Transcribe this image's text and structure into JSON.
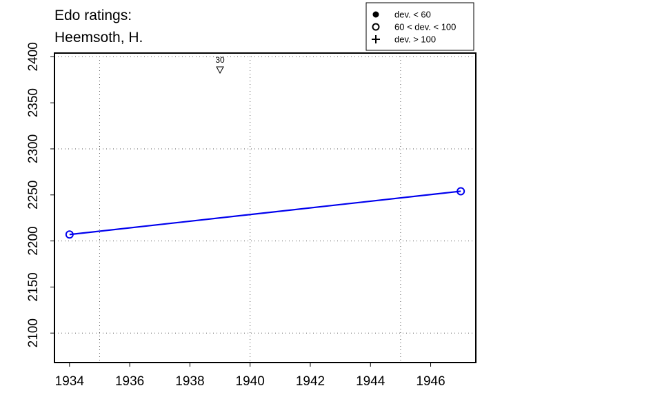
{
  "chart_data": {
    "type": "line",
    "title_lines": [
      "Edo ratings:",
      "Heemsoth, H."
    ],
    "xlabel": "",
    "ylabel": "",
    "xlim": [
      1933.5,
      1947.5
    ],
    "ylim": [
      2068,
      2404
    ],
    "x_ticks": [
      1934,
      1936,
      1938,
      1940,
      1942,
      1944,
      1946
    ],
    "y_ticks": [
      2100,
      2150,
      2200,
      2250,
      2300,
      2350,
      2400
    ],
    "x_grid": [
      1935,
      1940,
      1945
    ],
    "y_grid": [
      2100,
      2200,
      2300,
      2400
    ],
    "grid": true,
    "line_color": "#0000ee",
    "series": [
      {
        "x": [
          1934,
          1947
        ],
        "y": [
          2207,
          2254
        ],
        "marker": "open-circle"
      }
    ],
    "annotations": [
      {
        "x": 1939,
        "y": 2386,
        "label": "30",
        "marker": "down-triangle"
      }
    ],
    "legend": {
      "position": "top-right",
      "entries": [
        {
          "symbol": "filled-circle",
          "label": "dev. < 60"
        },
        {
          "symbol": "open-circle",
          "label": "60 < dev. < 100"
        },
        {
          "symbol": "plus",
          "label": "dev. > 100"
        }
      ]
    }
  }
}
